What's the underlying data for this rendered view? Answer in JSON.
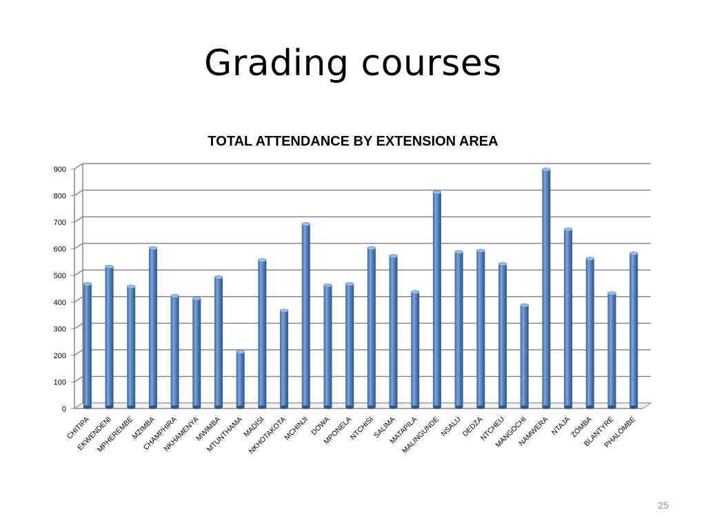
{
  "slide": {
    "title": "Grading courses",
    "number": "25"
  },
  "chart_data": {
    "type": "bar",
    "title": "TOTAL ATTENDANCE BY EXTENSION AREA",
    "xlabel": "",
    "ylabel": "",
    "ylim": [
      0,
      900
    ],
    "yticks": [
      0,
      100,
      200,
      300,
      400,
      500,
      600,
      700,
      800,
      900
    ],
    "grid": true,
    "legend": "none",
    "bar_color": "#4f81bd",
    "categories": [
      "CHITIPA",
      "EKWENDENI",
      "MPHEREMBE",
      "MZIMBA",
      "CHAMPHIRA",
      "NKHAMENYA",
      "MWIMBA",
      "MTUNTHAMA",
      "MADISI",
      "NKHOTAKOTA",
      "MCHINJI",
      "DOWA",
      "MPONELA",
      "NTCHISI",
      "SALIMA",
      "MATAPILA",
      "MALINGUNDE",
      "NSALU",
      "DEDZA",
      "NTCHEU",
      "MANGOCHI",
      "NAMWERA",
      "NTAJA",
      "ZOMBA",
      "BLANTYRE",
      "PHALOMBE"
    ],
    "values": [
      455,
      520,
      445,
      590,
      410,
      400,
      480,
      200,
      545,
      355,
      680,
      450,
      455,
      590,
      560,
      425,
      800,
      575,
      580,
      530,
      375,
      885,
      660,
      550,
      420,
      570
    ]
  }
}
